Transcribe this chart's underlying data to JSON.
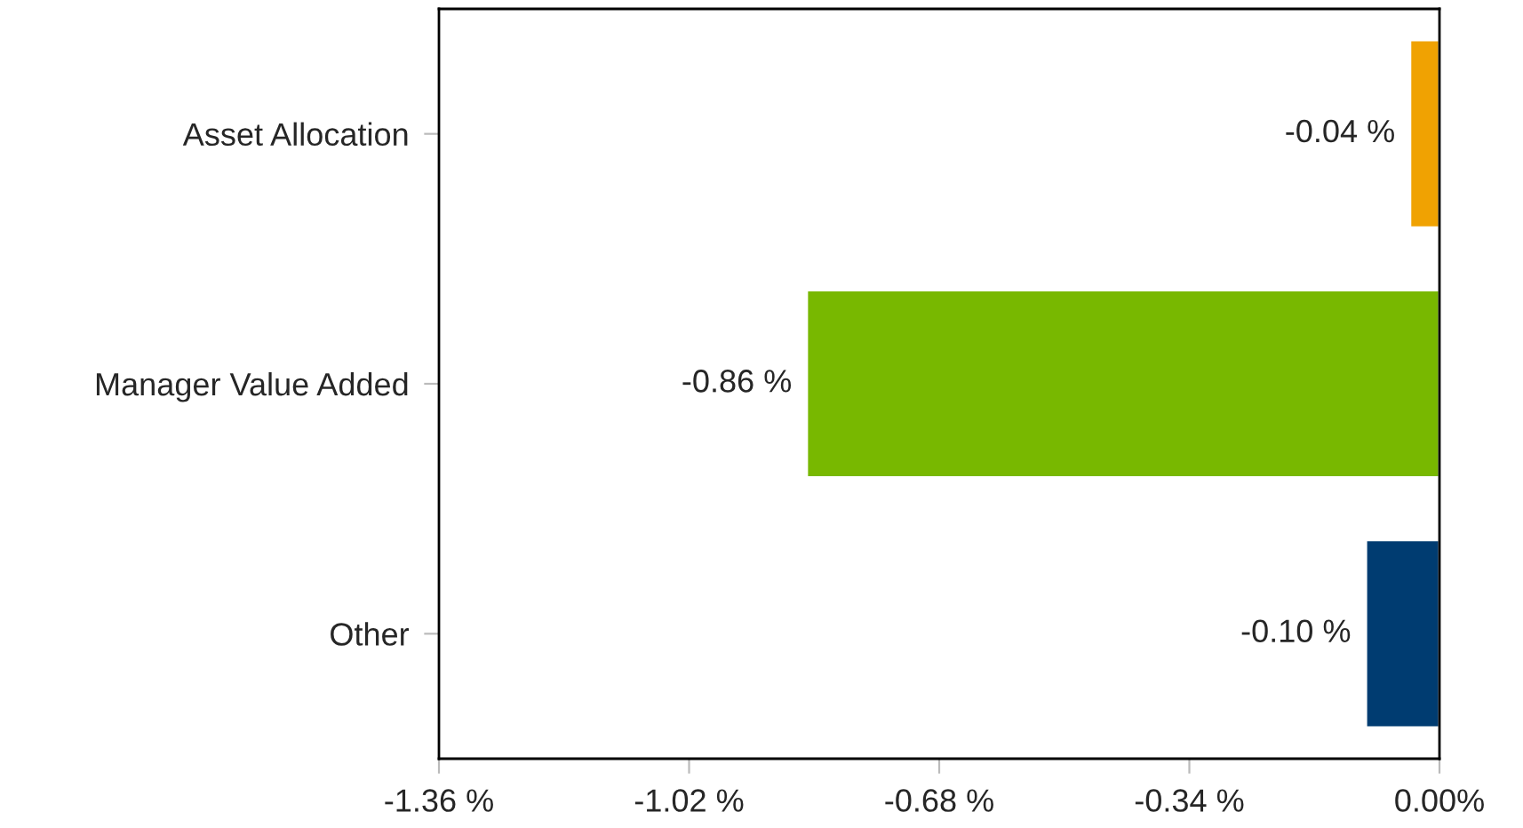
{
  "chart_data": {
    "type": "bar",
    "orientation": "horizontal",
    "categories": [
      "Asset Allocation",
      "Manager Value Added",
      "Other"
    ],
    "values": [
      -0.04,
      -0.86,
      -0.1
    ],
    "colors": [
      "#f0a202",
      "#78b800",
      "#003c71"
    ],
    "value_labels": [
      "-0.04 %",
      "-0.86 %",
      "-0.10 %"
    ],
    "xlim": [
      -1.36,
      0
    ],
    "xticks": [
      {
        "value": -1.36,
        "label": "-1.36 %"
      },
      {
        "value": -1.02,
        "label": "-1.02 %"
      },
      {
        "value": -0.68,
        "label": "-0.68 %"
      },
      {
        "value": -0.34,
        "label": "-0.34 %"
      },
      {
        "value": 0,
        "label": "0.00%"
      }
    ],
    "grid": false,
    "legend": false
  }
}
